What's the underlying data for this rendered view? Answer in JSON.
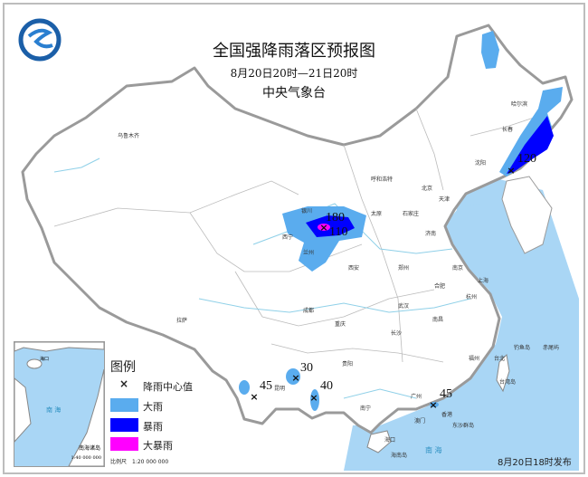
{
  "header": {
    "title": "全国强降雨落区预报图",
    "period": "8月20日20时—21日20时",
    "issuer": "中央气象台"
  },
  "logo": {
    "icon": "cma-logo-icon",
    "color": "#1b5fa8"
  },
  "legend": {
    "title": "图例",
    "items": [
      {
        "label": "降雨中心值",
        "symbol": "×"
      },
      {
        "label": "大雨",
        "color": "#5aacee"
      },
      {
        "label": "暴雨",
        "color": "#0000ff"
      },
      {
        "label": "大暴雨",
        "color": "#ff00ff"
      }
    ],
    "scale": "比例尺　1:20 000 000"
  },
  "inset": {
    "label": "南海诸岛",
    "scale": "1:40 000 000",
    "sea": "南 海",
    "places": [
      "海口",
      "海南岛",
      "澳门",
      "香港",
      "台湾岛"
    ]
  },
  "centers": [
    {
      "value": "180"
    },
    {
      "value": "110"
    },
    {
      "value": "120"
    },
    {
      "value": "30"
    },
    {
      "value": "45"
    },
    {
      "value": "40"
    },
    {
      "value": "45"
    }
  ],
  "cities": [
    "乌鲁木齐",
    "银川",
    "西宁",
    "兰州",
    "西安",
    "哈尔滨",
    "长春",
    "沈阳",
    "呼和浩特",
    "北京",
    "天津",
    "石家庄",
    "太原",
    "济南",
    "郑州",
    "成都",
    "重庆",
    "拉萨",
    "武汉",
    "长沙",
    "合肥",
    "南京",
    "上海",
    "杭州",
    "南昌",
    "贵阳",
    "昆明",
    "南宁",
    "广州",
    "香港",
    "澳门",
    "福州",
    "台北",
    "台湾岛",
    "海南岛",
    "海口",
    "东沙群岛",
    "钓鱼岛",
    "赤尾屿",
    "南 海"
  ],
  "footer": {
    "issued": "8月20日18时发布"
  },
  "colors": {
    "sea": "#a9d6f5",
    "heavy": "#5aacee",
    "storm": "#0000ff",
    "severe": "#ff00ff",
    "border": "#9a9a9a"
  }
}
